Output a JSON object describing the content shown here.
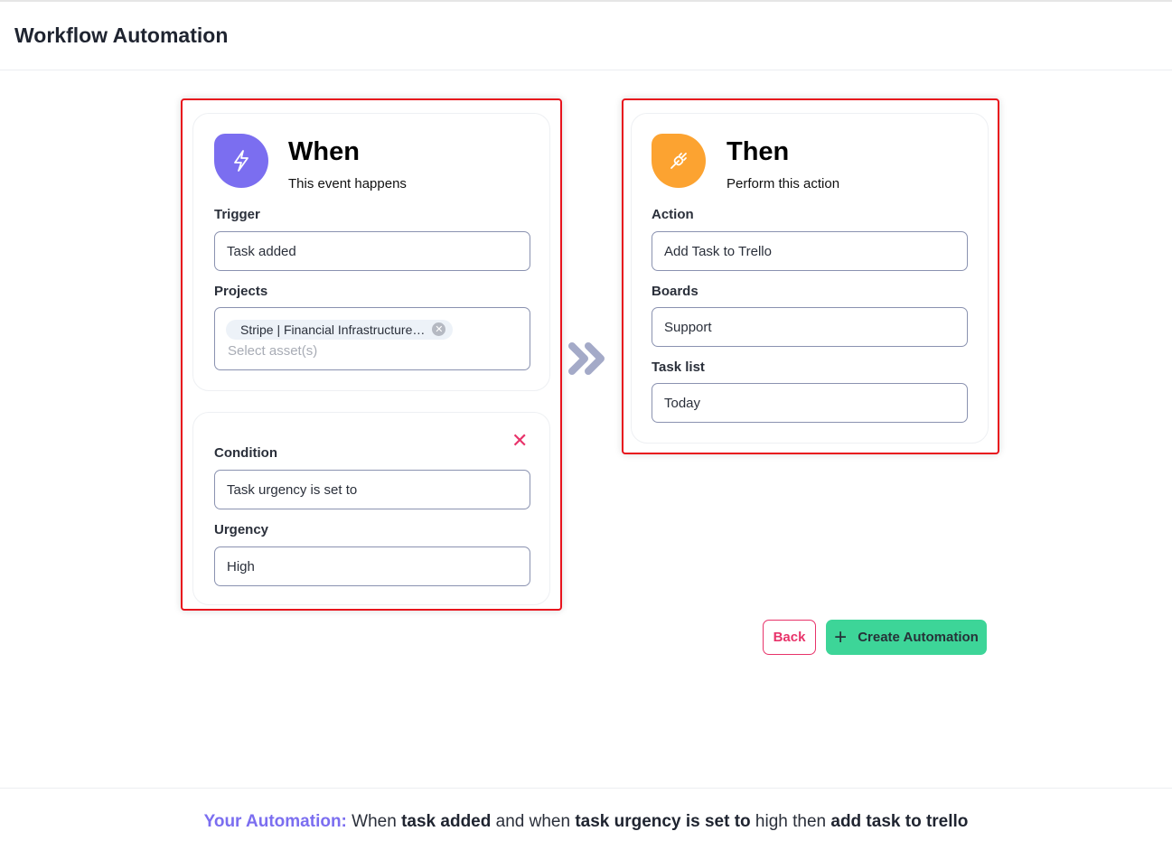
{
  "header": {
    "title": "Workflow Automation"
  },
  "when": {
    "icon": "lightning-icon",
    "icon_color": "#7b6ef0",
    "title": "When",
    "subtitle": "This event happens",
    "trigger_label": "Trigger",
    "trigger_value": "Task added",
    "projects_label": "Projects",
    "project_chip": "Stripe | Financial Infrastructure…",
    "projects_placeholder": "Select asset(s)",
    "condition_label": "Condition",
    "condition_value": "Task urgency is set to",
    "urgency_label": "Urgency",
    "urgency_value": "High"
  },
  "then": {
    "icon": "plug-icon",
    "icon_color": "#fca331",
    "title": "Then",
    "subtitle": "Perform this action",
    "action_label": "Action",
    "action_value": "Add Task to Trello",
    "boards_label": "Boards",
    "boards_value": "Support",
    "tasklist_label": "Task list",
    "tasklist_value": "Today"
  },
  "buttons": {
    "back": "Back",
    "create": "Create Automation"
  },
  "summary": {
    "prefix": "Your Automation:",
    "p1": " When ",
    "b1": "task added",
    "p2": " and when ",
    "b2": "task urgency is set to",
    "p3": " high then ",
    "b3": "add task to trello"
  },
  "colors": {
    "accent": "#7b6ef0",
    "danger": "#e8336a",
    "success": "#3dd598"
  }
}
